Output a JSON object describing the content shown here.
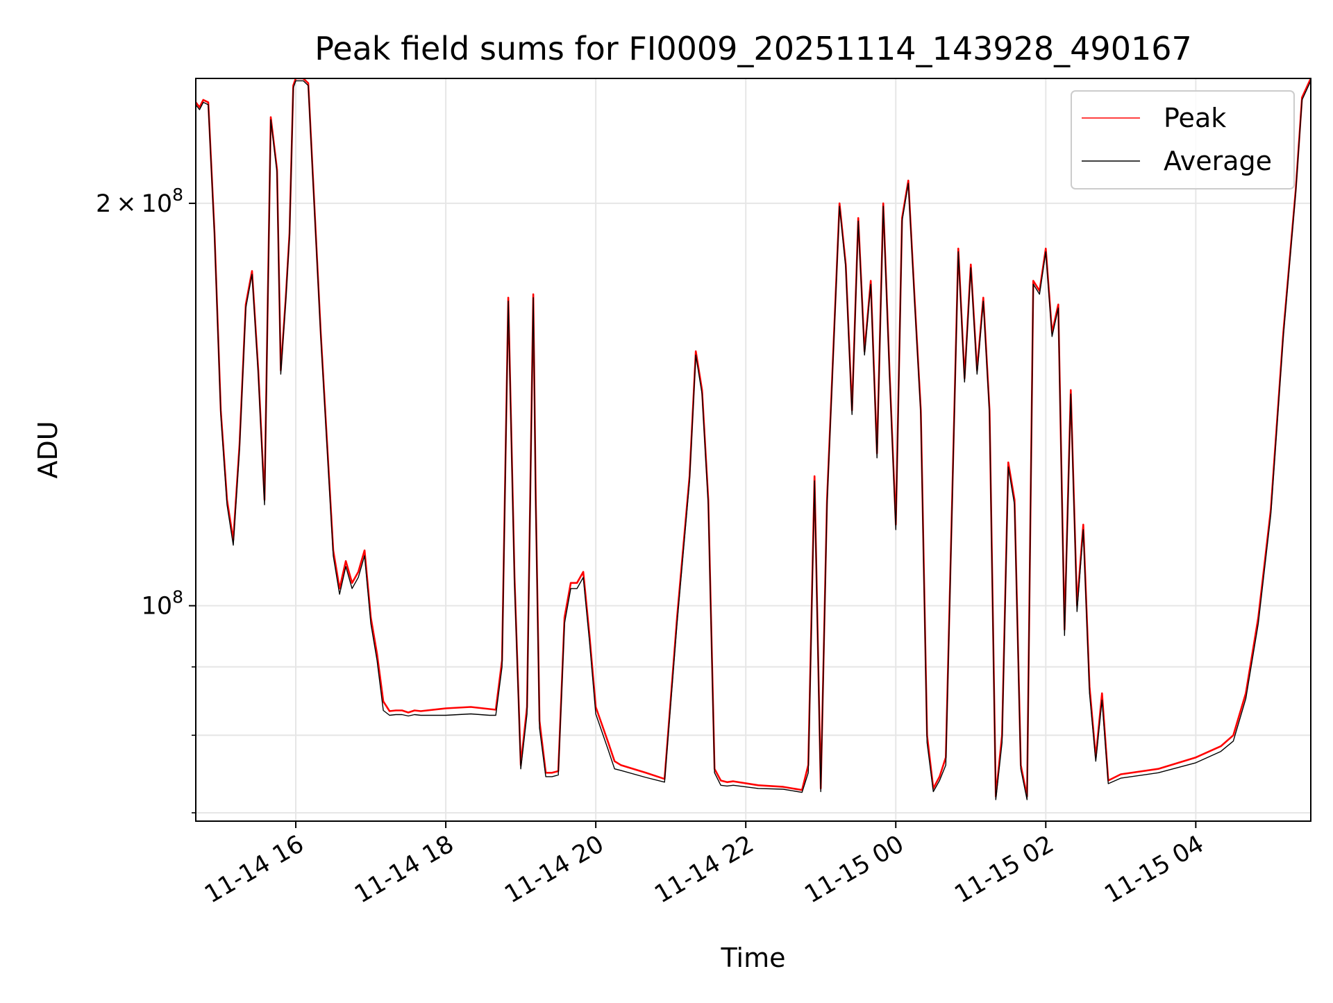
{
  "chart_data": {
    "type": "line",
    "title": "Peak field sums for FI0009_20251114_143928_490167",
    "xlabel": "Time",
    "ylabel": "ADU",
    "yscale": "log",
    "xlim": [
      "2025-11-14 14:40",
      "2025-11-15 05:32"
    ],
    "ylim": [
      69000000,
      248000000
    ],
    "grid": true,
    "legend_position": "upper right",
    "x_tick_labels": [
      "11-14 16",
      "11-14 18",
      "11-14 20",
      "11-14 22",
      "11-15 00",
      "11-15 02",
      "11-15 04"
    ],
    "y_tick_labels": [
      {
        "mantissa": "2",
        "exponent": "8"
      },
      {
        "mantissa": "",
        "exponent": "8"
      }
    ],
    "series": [
      {
        "name": "Peak",
        "color": "#ff0000",
        "x": [
          "2025-11-14 14:40",
          "2025-11-14 14:43",
          "2025-11-14 14:46",
          "2025-11-14 14:50",
          "2025-11-14 14:55",
          "2025-11-14 15:00",
          "2025-11-14 15:05",
          "2025-11-14 15:10",
          "2025-11-14 15:15",
          "2025-11-14 15:20",
          "2025-11-14 15:25",
          "2025-11-14 15:30",
          "2025-11-14 15:35",
          "2025-11-14 15:40",
          "2025-11-14 15:45",
          "2025-11-14 15:48",
          "2025-11-14 15:52",
          "2025-11-14 15:55",
          "2025-11-14 15:58",
          "2025-11-14 16:00",
          "2025-11-14 16:03",
          "2025-11-14 16:06",
          "2025-11-14 16:10",
          "2025-11-14 16:20",
          "2025-11-14 16:30",
          "2025-11-14 16:35",
          "2025-11-14 16:40",
          "2025-11-14 16:45",
          "2025-11-14 16:50",
          "2025-11-14 16:55",
          "2025-11-14 17:00",
          "2025-11-14 17:05",
          "2025-11-14 17:10",
          "2025-11-14 17:15",
          "2025-11-14 17:20",
          "2025-11-14 17:25",
          "2025-11-14 17:30",
          "2025-11-14 17:35",
          "2025-11-14 17:40",
          "2025-11-14 18:00",
          "2025-11-14 18:20",
          "2025-11-14 18:35",
          "2025-11-14 18:40",
          "2025-11-14 18:45",
          "2025-11-14 18:50",
          "2025-11-14 18:55",
          "2025-11-14 19:00",
          "2025-11-14 19:05",
          "2025-11-14 19:10",
          "2025-11-14 19:12",
          "2025-11-14 19:15",
          "2025-11-14 19:20",
          "2025-11-14 19:25",
          "2025-11-14 19:30",
          "2025-11-14 19:35",
          "2025-11-14 19:40",
          "2025-11-14 19:45",
          "2025-11-14 19:50",
          "2025-11-14 19:55",
          "2025-11-14 20:00",
          "2025-11-14 20:10",
          "2025-11-14 20:15",
          "2025-11-14 20:20",
          "2025-11-14 20:40",
          "2025-11-14 20:55",
          "2025-11-14 21:05",
          "2025-11-14 21:15",
          "2025-11-14 21:20",
          "2025-11-14 21:25",
          "2025-11-14 21:30",
          "2025-11-14 21:35",
          "2025-11-14 21:40",
          "2025-11-14 21:45",
          "2025-11-14 21:50",
          "2025-11-14 22:10",
          "2025-11-14 22:30",
          "2025-11-14 22:45",
          "2025-11-14 22:50",
          "2025-11-14 22:55",
          "2025-11-14 23:00",
          "2025-11-14 23:05",
          "2025-11-14 23:10",
          "2025-11-14 23:15",
          "2025-11-14 23:20",
          "2025-11-14 23:25",
          "2025-11-14 23:30",
          "2025-11-14 23:35",
          "2025-11-14 23:40",
          "2025-11-14 23:45",
          "2025-11-14 23:50",
          "2025-11-14 23:55",
          "2025-11-15 00:00",
          "2025-11-15 00:05",
          "2025-11-15 00:10",
          "2025-11-15 00:15",
          "2025-11-15 00:20",
          "2025-11-15 00:25",
          "2025-11-15 00:30",
          "2025-11-15 00:35",
          "2025-11-15 00:40",
          "2025-11-15 00:50",
          "2025-11-15 00:55",
          "2025-11-15 01:00",
          "2025-11-15 01:05",
          "2025-11-15 01:10",
          "2025-11-15 01:15",
          "2025-11-15 01:20",
          "2025-11-15 01:25",
          "2025-11-15 01:30",
          "2025-11-15 01:35",
          "2025-11-15 01:40",
          "2025-11-15 01:45",
          "2025-11-15 01:50",
          "2025-11-15 01:55",
          "2025-11-15 02:00",
          "2025-11-15 02:05",
          "2025-11-15 02:10",
          "2025-11-15 02:15",
          "2025-11-15 02:20",
          "2025-11-15 02:25",
          "2025-11-15 02:30",
          "2025-11-15 02:35",
          "2025-11-15 02:40",
          "2025-11-15 02:45",
          "2025-11-15 02:50",
          "2025-11-15 03:00",
          "2025-11-15 03:30",
          "2025-11-15 04:00",
          "2025-11-15 04:20",
          "2025-11-15 04:30",
          "2025-11-15 04:40",
          "2025-11-15 04:50",
          "2025-11-15 05:00",
          "2025-11-15 05:10",
          "2025-11-15 05:20",
          "2025-11-15 05:25",
          "2025-11-15 05:32"
        ],
        "values": [
          238000000,
          236000000,
          239000000,
          238000000,
          190000000,
          140000000,
          120000000,
          112000000,
          132000000,
          168000000,
          178000000,
          150000000,
          120000000,
          232000000,
          212000000,
          150000000,
          170000000,
          190000000,
          245000000,
          248000000,
          248000000,
          248000000,
          246000000,
          160000000,
          110000000,
          103000000,
          108000000,
          104000000,
          106000000,
          110000000,
          98000000,
          92000000,
          84800000,
          83400000,
          83500000,
          83500000,
          83200000,
          83500000,
          83400000,
          83800000,
          84000000,
          83700000,
          83600000,
          91000000,
          170000000,
          105000000,
          76000000,
          84000000,
          171000000,
          120000000,
          82000000,
          75000000,
          75000000,
          75200000,
          98000000,
          104000000,
          104000000,
          106000000,
          95000000,
          84000000,
          79000000,
          76500000,
          76000000,
          75000000,
          74200000,
          98000000,
          125000000,
          155000000,
          145000000,
          120000000,
          75500000,
          74000000,
          73800000,
          73900000,
          73400000,
          73200000,
          72800000,
          76000000,
          125000000,
          73000000,
          120000000,
          155000000,
          200000000,
          180000000,
          140000000,
          195000000,
          155000000,
          175000000,
          130000000,
          200000000,
          150000000,
          115000000,
          195000000,
          208000000,
          170000000,
          140000000,
          80000000,
          73000000,
          74500000,
          77000000,
          185000000,
          148000000,
          180000000,
          150000000,
          170000000,
          140000000,
          72000000,
          80000000,
          128000000,
          120000000,
          76000000,
          72000000,
          175000000,
          172000000,
          185000000,
          160000000,
          168000000,
          96000000,
          145000000,
          100000000,
          115000000,
          87000000,
          77000000,
          86000000,
          74000000,
          74800000,
          75500000,
          77000000,
          78500000,
          80000000,
          86000000,
          98000000,
          118000000,
          160000000,
          205000000,
          240000000,
          248000000
        ]
      },
      {
        "name": "Average",
        "color": "#000000",
        "x": [
          "2025-11-14 14:40",
          "2025-11-14 14:43",
          "2025-11-14 14:46",
          "2025-11-14 14:50",
          "2025-11-14 14:55",
          "2025-11-14 15:00",
          "2025-11-14 15:05",
          "2025-11-14 15:10",
          "2025-11-14 15:15",
          "2025-11-14 15:20",
          "2025-11-14 15:25",
          "2025-11-14 15:30",
          "2025-11-14 15:35",
          "2025-11-14 15:40",
          "2025-11-14 15:45",
          "2025-11-14 15:48",
          "2025-11-14 15:52",
          "2025-11-14 15:55",
          "2025-11-14 15:58",
          "2025-11-14 16:00",
          "2025-11-14 16:03",
          "2025-11-14 16:06",
          "2025-11-14 16:10",
          "2025-11-14 16:20",
          "2025-11-14 16:30",
          "2025-11-14 16:35",
          "2025-11-14 16:40",
          "2025-11-14 16:45",
          "2025-11-14 16:50",
          "2025-11-14 16:55",
          "2025-11-14 17:00",
          "2025-11-14 17:05",
          "2025-11-14 17:10",
          "2025-11-14 17:15",
          "2025-11-14 17:20",
          "2025-11-14 17:25",
          "2025-11-14 17:30",
          "2025-11-14 17:35",
          "2025-11-14 17:40",
          "2025-11-14 18:00",
          "2025-11-14 18:20",
          "2025-11-14 18:35",
          "2025-11-14 18:40",
          "2025-11-14 18:45",
          "2025-11-14 18:50",
          "2025-11-14 18:55",
          "2025-11-14 19:00",
          "2025-11-14 19:05",
          "2025-11-14 19:10",
          "2025-11-14 19:12",
          "2025-11-14 19:15",
          "2025-11-14 19:20",
          "2025-11-14 19:25",
          "2025-11-14 19:30",
          "2025-11-14 19:35",
          "2025-11-14 19:40",
          "2025-11-14 19:45",
          "2025-11-14 19:50",
          "2025-11-14 19:55",
          "2025-11-14 20:00",
          "2025-11-14 20:10",
          "2025-11-14 20:15",
          "2025-11-14 20:20",
          "2025-11-14 20:40",
          "2025-11-14 20:55",
          "2025-11-14 21:05",
          "2025-11-14 21:15",
          "2025-11-14 21:20",
          "2025-11-14 21:25",
          "2025-11-14 21:30",
          "2025-11-14 21:35",
          "2025-11-14 21:40",
          "2025-11-14 21:45",
          "2025-11-14 21:50",
          "2025-11-14 22:10",
          "2025-11-14 22:30",
          "2025-11-14 22:45",
          "2025-11-14 22:50",
          "2025-11-14 22:55",
          "2025-11-14 23:00",
          "2025-11-14 23:05",
          "2025-11-14 23:10",
          "2025-11-14 23:15",
          "2025-11-14 23:20",
          "2025-11-14 23:25",
          "2025-11-14 23:30",
          "2025-11-14 23:35",
          "2025-11-14 23:40",
          "2025-11-14 23:45",
          "2025-11-14 23:50",
          "2025-11-14 23:55",
          "2025-11-15 00:00",
          "2025-11-15 00:05",
          "2025-11-15 00:10",
          "2025-11-15 00:15",
          "2025-11-15 00:20",
          "2025-11-15 00:25",
          "2025-11-15 00:30",
          "2025-11-15 00:35",
          "2025-11-15 00:40",
          "2025-11-15 00:50",
          "2025-11-15 00:55",
          "2025-11-15 01:00",
          "2025-11-15 01:05",
          "2025-11-15 01:10",
          "2025-11-15 01:15",
          "2025-11-15 01:20",
          "2025-11-15 01:25",
          "2025-11-15 01:30",
          "2025-11-15 01:35",
          "2025-11-15 01:40",
          "2025-11-15 01:45",
          "2025-11-15 01:50",
          "2025-11-15 01:55",
          "2025-11-15 02:00",
          "2025-11-15 02:05",
          "2025-11-15 02:10",
          "2025-11-15 02:15",
          "2025-11-15 02:20",
          "2025-11-15 02:25",
          "2025-11-15 02:30",
          "2025-11-15 02:35",
          "2025-11-15 02:40",
          "2025-11-15 02:45",
          "2025-11-15 02:50",
          "2025-11-15 03:00",
          "2025-11-15 03:30",
          "2025-11-15 04:00",
          "2025-11-15 04:20",
          "2025-11-15 04:30",
          "2025-11-15 04:40",
          "2025-11-15 04:50",
          "2025-11-15 05:00",
          "2025-11-15 05:10",
          "2025-11-15 05:20",
          "2025-11-15 05:25",
          "2025-11-15 05:32"
        ],
        "values": [
          237000000,
          235000000,
          238000000,
          237000000,
          189000000,
          139000000,
          119000000,
          111000000,
          131000000,
          167000000,
          177000000,
          149000000,
          119000000,
          231000000,
          211000000,
          149000000,
          169000000,
          189000000,
          244000000,
          247000000,
          247000000,
          247000000,
          245000000,
          159000000,
          109000000,
          102000000,
          107000000,
          103000000,
          105000000,
          109000000,
          97000000,
          91000000,
          83500000,
          82800000,
          82900000,
          82900000,
          82700000,
          82900000,
          82800000,
          82800000,
          83000000,
          82800000,
          82800000,
          90000000,
          169000000,
          104000000,
          75500000,
          83000000,
          170000000,
          119000000,
          81000000,
          74500000,
          74500000,
          74700000,
          97000000,
          103000000,
          103000000,
          105000000,
          94000000,
          83000000,
          78000000,
          75500000,
          75300000,
          74400000,
          73800000,
          97000000,
          124000000,
          154000000,
          144000000,
          119000000,
          75000000,
          73400000,
          73300000,
          73400000,
          73000000,
          72900000,
          72500000,
          75000000,
          124000000,
          72600000,
          119000000,
          154000000,
          199000000,
          179000000,
          139000000,
          194000000,
          154000000,
          174000000,
          129000000,
          199000000,
          149000000,
          114000000,
          194000000,
          207000000,
          169000000,
          139000000,
          79000000,
          72600000,
          74000000,
          76000000,
          184000000,
          147000000,
          179000000,
          149000000,
          169000000,
          139000000,
          71600000,
          79000000,
          127000000,
          119000000,
          75500000,
          71600000,
          174000000,
          171000000,
          184000000,
          159000000,
          167000000,
          95000000,
          144000000,
          99000000,
          114000000,
          86000000,
          76500000,
          85000000,
          73600000,
          74300000,
          75000000,
          76300000,
          77800000,
          79200000,
          85200000,
          97000000,
          117000000,
          159000000,
          204000000,
          239000000,
          247000000
        ]
      }
    ]
  }
}
